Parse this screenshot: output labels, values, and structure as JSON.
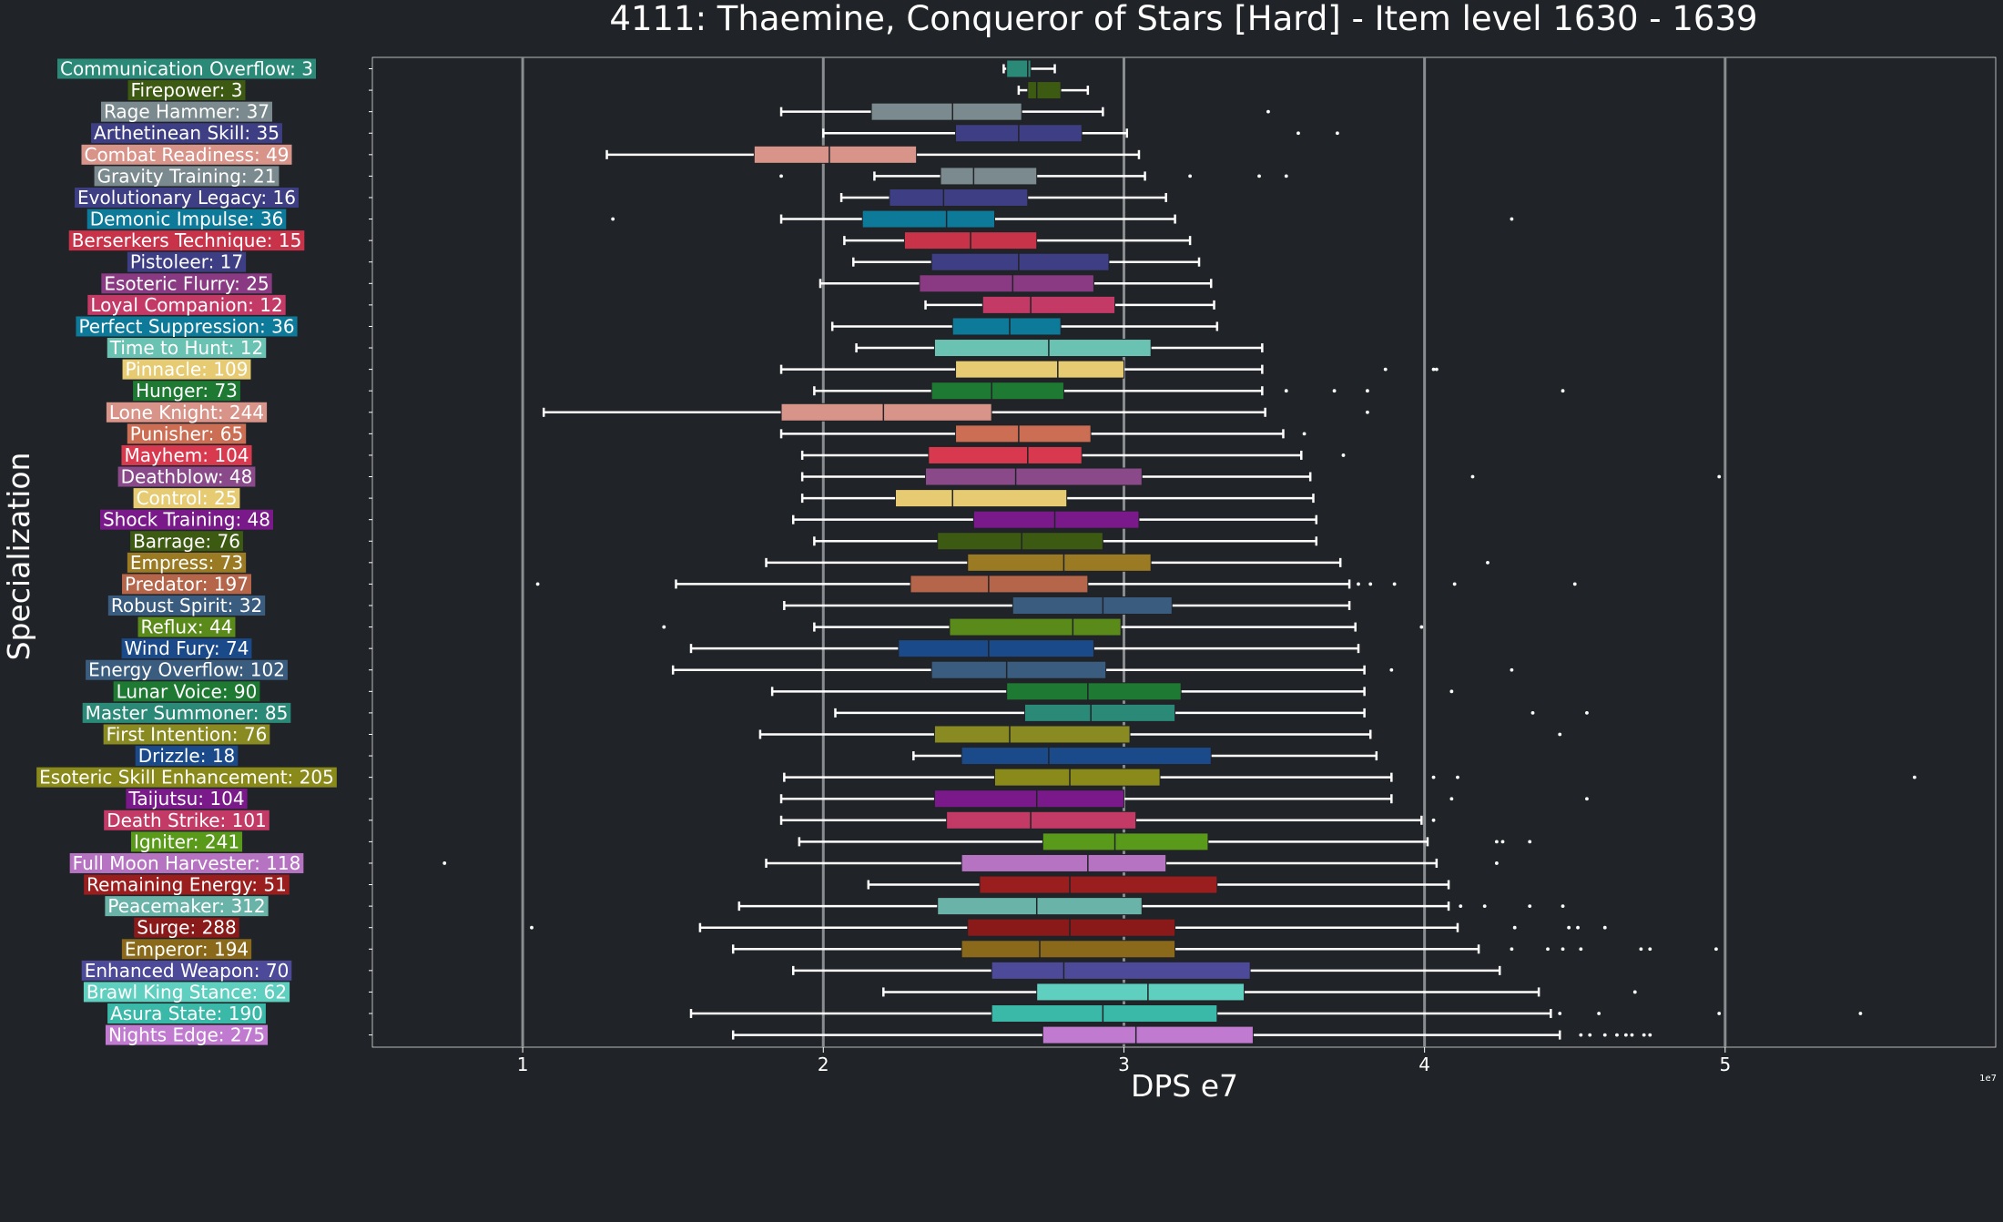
{
  "chart_data": {
    "type": "boxplot",
    "orientation": "horizontal",
    "title": "4111: Thaemine, Conqueror of Stars [Hard] - Item level 1630 - 1639",
    "xlabel": "DPS e7",
    "ylabel": "Specialization",
    "x_multiplier_label": "1e7",
    "xlim": [
      0.5,
      5.9
    ],
    "xticks": [
      1,
      2,
      3,
      4,
      5
    ],
    "grid": "vertical",
    "background": "#202327",
    "box_edge_color": "#202327",
    "whisker_color": "#ffffff",
    "gridline_color": "#8a8d90",
    "categories": [
      {
        "label": "Communication Overflow: 3",
        "color": "#2a8a77",
        "whislo": 2.6,
        "q1": 2.61,
        "med": 2.68,
        "q3": 2.69,
        "whishi": 2.77,
        "fliers": []
      },
      {
        "label": "Firepower: 3",
        "color": "#3d5a12",
        "whislo": 2.65,
        "q1": 2.68,
        "med": 2.71,
        "q3": 2.79,
        "whishi": 2.88,
        "fliers": []
      },
      {
        "label": "Rage Hammer: 37",
        "color": "#7b8a8e",
        "whislo": 1.86,
        "q1": 2.16,
        "med": 2.43,
        "q3": 2.66,
        "whishi": 2.93,
        "fliers": [
          3.48
        ]
      },
      {
        "label": "Arthetinean Skill: 35",
        "color": "#3e3e85",
        "whislo": 2.0,
        "q1": 2.44,
        "med": 2.65,
        "q3": 2.86,
        "whishi": 3.01,
        "fliers": [
          3.58,
          3.71
        ]
      },
      {
        "label": "Combat Readiness: 49",
        "color": "#d9948a",
        "whislo": 1.28,
        "q1": 1.77,
        "med": 2.02,
        "q3": 2.31,
        "whishi": 3.05,
        "fliers": []
      },
      {
        "label": "Gravity Training: 21",
        "color": "#7b8a8e",
        "whislo": 2.17,
        "q1": 2.39,
        "med": 2.5,
        "q3": 2.71,
        "whishi": 3.07,
        "fliers": [
          1.86,
          3.22,
          3.45,
          3.54
        ]
      },
      {
        "label": "Evolutionary Legacy: 16",
        "color": "#3e3e85",
        "whislo": 2.06,
        "q1": 2.22,
        "med": 2.4,
        "q3": 2.68,
        "whishi": 3.14,
        "fliers": []
      },
      {
        "label": "Demonic Impulse: 36",
        "color": "#0e7a9a",
        "whislo": 1.86,
        "q1": 2.13,
        "med": 2.41,
        "q3": 2.57,
        "whishi": 3.17,
        "fliers": [
          1.3,
          4.29
        ]
      },
      {
        "label": "Berserkers Technique: 15",
        "color": "#c8334a",
        "whislo": 2.07,
        "q1": 2.27,
        "med": 2.49,
        "q3": 2.71,
        "whishi": 3.22,
        "fliers": []
      },
      {
        "label": "Pistoleer: 17",
        "color": "#3e3e85",
        "whislo": 2.1,
        "q1": 2.36,
        "med": 2.65,
        "q3": 2.95,
        "whishi": 3.25,
        "fliers": []
      },
      {
        "label": "Esoteric Flurry: 25",
        "color": "#8a3a82",
        "whislo": 1.99,
        "q1": 2.32,
        "med": 2.63,
        "q3": 2.9,
        "whishi": 3.29,
        "fliers": []
      },
      {
        "label": "Loyal Companion: 12",
        "color": "#c43a66",
        "whislo": 2.34,
        "q1": 2.53,
        "med": 2.69,
        "q3": 2.97,
        "whishi": 3.3,
        "fliers": []
      },
      {
        "label": "Perfect Suppression: 36",
        "color": "#0e7a9a",
        "whislo": 2.03,
        "q1": 2.43,
        "med": 2.62,
        "q3": 2.79,
        "whishi": 3.31,
        "fliers": []
      },
      {
        "label": "Time to Hunt: 12",
        "color": "#6ac2b2",
        "whislo": 2.11,
        "q1": 2.37,
        "med": 2.75,
        "q3": 3.09,
        "whishi": 3.46,
        "fliers": []
      },
      {
        "label": "Pinnacle: 109",
        "color": "#e6cb72",
        "whislo": 1.86,
        "q1": 2.44,
        "med": 2.78,
        "q3": 3.0,
        "whishi": 3.46,
        "fliers": [
          3.87,
          4.03,
          4.04
        ]
      },
      {
        "label": "Hunger: 73",
        "color": "#1e7a32",
        "whislo": 1.97,
        "q1": 2.36,
        "med": 2.56,
        "q3": 2.8,
        "whishi": 3.46,
        "fliers": [
          3.54,
          3.7,
          3.81,
          4.46
        ]
      },
      {
        "label": "Lone Knight: 244",
        "color": "#d9948a",
        "whislo": 1.07,
        "q1": 1.86,
        "med": 2.2,
        "q3": 2.56,
        "whishi": 3.47,
        "fliers": [
          3.81
        ]
      },
      {
        "label": "Punisher: 65",
        "color": "#cc6e54",
        "whislo": 1.86,
        "q1": 2.44,
        "med": 2.65,
        "q3": 2.89,
        "whishi": 3.53,
        "fliers": [
          3.6
        ]
      },
      {
        "label": "Mayhem: 104",
        "color": "#d9394e",
        "whislo": 1.93,
        "q1": 2.35,
        "med": 2.68,
        "q3": 2.86,
        "whishi": 3.59,
        "fliers": [
          3.73
        ]
      },
      {
        "label": "Deathblow: 48",
        "color": "#8a4a8a",
        "whislo": 1.93,
        "q1": 2.34,
        "med": 2.64,
        "q3": 3.06,
        "whishi": 3.62,
        "fliers": [
          4.16,
          4.98
        ]
      },
      {
        "label": "Control: 25",
        "color": "#e6cb72",
        "whislo": 1.93,
        "q1": 2.24,
        "med": 2.43,
        "q3": 2.81,
        "whishi": 3.63,
        "fliers": []
      },
      {
        "label": "Shock Training: 48",
        "color": "#7a1a8a",
        "whislo": 1.9,
        "q1": 2.5,
        "med": 2.77,
        "q3": 3.05,
        "whishi": 3.64,
        "fliers": []
      },
      {
        "label": "Barrage: 76",
        "color": "#3d5a12",
        "whislo": 1.97,
        "q1": 2.38,
        "med": 2.66,
        "q3": 2.93,
        "whishi": 3.64,
        "fliers": []
      },
      {
        "label": "Empress: 73",
        "color": "#9a7a22",
        "whislo": 1.81,
        "q1": 2.48,
        "med": 2.8,
        "q3": 3.09,
        "whishi": 3.72,
        "fliers": [
          4.21
        ]
      },
      {
        "label": "Predator: 197",
        "color": "#b5654a",
        "whislo": 1.51,
        "q1": 2.29,
        "med": 2.55,
        "q3": 2.88,
        "whishi": 3.75,
        "fliers": [
          1.05,
          3.78,
          3.82,
          3.9,
          4.1,
          4.5
        ]
      },
      {
        "label": "Robust Spirit: 32",
        "color": "#3a5c7e",
        "whislo": 1.87,
        "q1": 2.63,
        "med": 2.93,
        "q3": 3.16,
        "whishi": 3.75,
        "fliers": []
      },
      {
        "label": "Reflux: 44",
        "color": "#5a8a1a",
        "whislo": 1.97,
        "q1": 2.42,
        "med": 2.83,
        "q3": 2.99,
        "whishi": 3.77,
        "fliers": [
          1.47,
          3.99
        ]
      },
      {
        "label": "Wind Fury: 74",
        "color": "#1a4a8a",
        "whislo": 1.56,
        "q1": 2.25,
        "med": 2.55,
        "q3": 2.9,
        "whishi": 3.78,
        "fliers": []
      },
      {
        "label": "Energy Overflow: 102",
        "color": "#3a5c7e",
        "whislo": 1.5,
        "q1": 2.36,
        "med": 2.61,
        "q3": 2.94,
        "whishi": 3.8,
        "fliers": [
          3.89,
          4.29
        ]
      },
      {
        "label": "Lunar Voice: 90",
        "color": "#1e7a32",
        "whislo": 1.83,
        "q1": 2.61,
        "med": 2.88,
        "q3": 3.19,
        "whishi": 3.8,
        "fliers": [
          4.09
        ]
      },
      {
        "label": "Master Summoner: 85",
        "color": "#2a8a77",
        "whislo": 2.04,
        "q1": 2.67,
        "med": 2.89,
        "q3": 3.17,
        "whishi": 3.8,
        "fliers": [
          4.36,
          4.54
        ]
      },
      {
        "label": "First Intention: 76",
        "color": "#8a8a22",
        "whislo": 1.79,
        "q1": 2.37,
        "med": 2.62,
        "q3": 3.02,
        "whishi": 3.82,
        "fliers": [
          4.45
        ]
      },
      {
        "label": "Drizzle: 18",
        "color": "#1a4a8a",
        "whislo": 2.3,
        "q1": 2.46,
        "med": 2.75,
        "q3": 3.29,
        "whishi": 3.84,
        "fliers": []
      },
      {
        "label": "Esoteric Skill Enhancement: 205",
        "color": "#8a8a1a",
        "whislo": 1.87,
        "q1": 2.57,
        "med": 2.82,
        "q3": 3.12,
        "whishi": 3.89,
        "fliers": [
          4.03,
          4.11,
          5.63
        ]
      },
      {
        "label": "Taijutsu: 104",
        "color": "#7a1a8a",
        "whislo": 1.86,
        "q1": 2.37,
        "med": 2.71,
        "q3": 3.0,
        "whishi": 3.89,
        "fliers": [
          4.09,
          4.54
        ]
      },
      {
        "label": "Death Strike: 101",
        "color": "#c43a66",
        "whislo": 1.86,
        "q1": 2.41,
        "med": 2.69,
        "q3": 3.04,
        "whishi": 3.99,
        "fliers": [
          4.03
        ]
      },
      {
        "label": "Igniter: 241",
        "color": "#5a9a1a",
        "whislo": 1.92,
        "q1": 2.73,
        "med": 2.97,
        "q3": 3.28,
        "whishi": 4.01,
        "fliers": [
          4.24,
          4.26,
          4.35
        ]
      },
      {
        "label": "Full Moon Harvester: 118",
        "color": "#b573c2",
        "whislo": 1.81,
        "q1": 2.46,
        "med": 2.88,
        "q3": 3.14,
        "whishi": 4.04,
        "fliers": [
          0.74,
          4.24
        ]
      },
      {
        "label": "Remaining Energy: 51",
        "color": "#9a1e1e",
        "whislo": 2.15,
        "q1": 2.52,
        "med": 2.82,
        "q3": 3.31,
        "whishi": 4.08,
        "fliers": []
      },
      {
        "label": "Peacemaker: 312",
        "color": "#6ab3a8",
        "whislo": 1.72,
        "q1": 2.38,
        "med": 2.71,
        "q3": 3.06,
        "whishi": 4.08,
        "fliers": [
          4.12,
          4.2,
          4.35,
          4.46
        ]
      },
      {
        "label": "Surge: 288",
        "color": "#8a1a1a",
        "whislo": 1.59,
        "q1": 2.48,
        "med": 2.82,
        "q3": 3.17,
        "whishi": 4.11,
        "fliers": [
          1.03,
          4.3,
          4.48,
          4.51,
          4.6
        ]
      },
      {
        "label": "Emperor: 194",
        "color": "#8a6a1a",
        "whislo": 1.7,
        "q1": 2.46,
        "med": 2.72,
        "q3": 3.17,
        "whishi": 4.18,
        "fliers": [
          4.29,
          4.41,
          4.46,
          4.52,
          4.72,
          4.75,
          4.97
        ]
      },
      {
        "label": "Enhanced Weapon: 70",
        "color": "#4e4a9a",
        "whislo": 1.9,
        "q1": 2.56,
        "med": 2.8,
        "q3": 3.42,
        "whishi": 4.25,
        "fliers": []
      },
      {
        "label": "Brawl King Stance: 62",
        "color": "#5fd0c0",
        "whislo": 2.2,
        "q1": 2.71,
        "med": 3.08,
        "q3": 3.4,
        "whishi": 4.38,
        "fliers": [
          4.7
        ]
      },
      {
        "label": "Asura State: 190",
        "color": "#3ab8a8",
        "whislo": 1.56,
        "q1": 2.56,
        "med": 2.93,
        "q3": 3.31,
        "whishi": 4.42,
        "fliers": [
          4.45,
          4.58,
          4.98,
          5.45
        ]
      },
      {
        "label": "Nights Edge: 275",
        "color": "#c07ad0",
        "whislo": 1.7,
        "q1": 2.73,
        "med": 3.04,
        "q3": 3.43,
        "whishi": 4.45,
        "fliers": [
          4.52,
          4.55,
          4.6,
          4.64,
          4.67,
          4.69,
          4.73,
          4.75
        ]
      }
    ]
  }
}
